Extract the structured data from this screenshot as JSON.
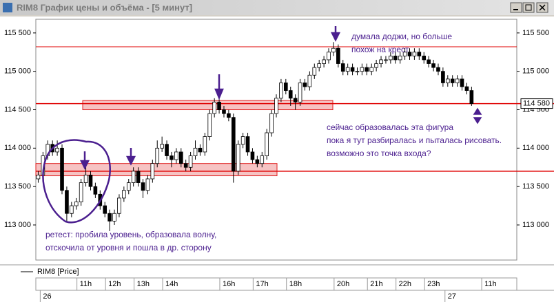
{
  "window_title": "RIM8 График цены и объёма - [5 минут]",
  "chart_data": {
    "type": "candlestick",
    "legend": "RIM8 [Price]",
    "ylim": [
      112570,
      115660
    ],
    "yticks": [
      {
        "value": 113000,
        "label": "113 000"
      },
      {
        "value": 113500,
        "label": "113 500"
      },
      {
        "value": 114000,
        "label": "114 000"
      },
      {
        "value": 114500,
        "label": "114 500"
      },
      {
        "value": 115000,
        "label": "115 000"
      },
      {
        "value": 115500,
        "label": "115 500"
      }
    ],
    "current_price": {
      "value": 114580,
      "label": "114 580"
    },
    "levels": [
      115320,
      114580,
      113700
    ],
    "zones": [
      [
        114500,
        114620
      ],
      [
        113640,
        113800
      ]
    ],
    "categories": [
      null,
      null,
      null,
      null,
      null,
      null,
      null,
      null,
      null,
      "11h",
      null,
      null,
      null,
      null,
      null,
      "12h",
      null,
      null,
      null,
      null,
      null,
      "13h",
      null,
      null,
      null,
      null,
      null,
      "14h",
      null,
      null,
      null,
      null,
      null,
      null,
      null,
      null,
      null,
      null,
      null,
      "16h",
      null,
      null,
      null,
      null,
      null,
      null,
      "17h",
      null,
      null,
      null,
      null,
      null,
      null,
      "18h",
      null,
      null,
      null,
      null,
      null,
      null,
      null,
      null,
      null,
      "20h",
      null,
      null,
      null,
      null,
      null,
      null,
      "21h",
      null,
      null,
      null,
      null,
      null,
      "22h",
      null,
      null,
      null,
      null,
      null,
      "23h",
      null,
      null,
      null,
      null,
      null,
      null,
      null,
      null,
      null,
      null,
      null,
      "11h",
      null,
      null,
      null,
      null,
      null,
      null
    ],
    "date_labels": [
      null,
      "26",
      null,
      null,
      null,
      null,
      null,
      null,
      null,
      null,
      null,
      null,
      null,
      null,
      null,
      null,
      null,
      null,
      null,
      null,
      null,
      null,
      null,
      null,
      null,
      null,
      null,
      null,
      null,
      null,
      null,
      null,
      null,
      null,
      null,
      null,
      null,
      null,
      null,
      null,
      null,
      null,
      null,
      null,
      null,
      null,
      null,
      null,
      null,
      null,
      null,
      null,
      null,
      null,
      null,
      null,
      null,
      null,
      null,
      null,
      null,
      null,
      null,
      null,
      null,
      null,
      null,
      null,
      null,
      null,
      null,
      null,
      null,
      null,
      null,
      null,
      null,
      null,
      null,
      null,
      null,
      null,
      null,
      null,
      null,
      null,
      "27",
      null,
      null,
      null,
      null,
      null,
      null,
      null,
      null,
      null,
      null,
      null,
      null,
      null
    ],
    "ohlc": [
      [
        113600,
        113700,
        113550,
        113650
      ],
      [
        113650,
        113950,
        113600,
        113900
      ],
      [
        113900,
        114100,
        113850,
        114050
      ],
      [
        114050,
        114100,
        113900,
        113950
      ],
      [
        113950,
        114100,
        113900,
        114000
      ],
      [
        114000,
        114050,
        113400,
        113450
      ],
      [
        113450,
        113500,
        113050,
        113150
      ],
      [
        113150,
        113300,
        113100,
        113250
      ],
      [
        113250,
        113350,
        113200,
        113300
      ],
      [
        113300,
        113600,
        113250,
        113550
      ],
      [
        113550,
        113750,
        113500,
        113650
      ],
      [
        113650,
        113700,
        113450,
        113500
      ],
      [
        113500,
        113550,
        113350,
        113400
      ],
      [
        113400,
        113450,
        113200,
        113250
      ],
      [
        113250,
        113300,
        113100,
        113150
      ],
      [
        113150,
        113200,
        112920,
        113050
      ],
      [
        113050,
        113200,
        113000,
        113150
      ],
      [
        113150,
        113400,
        113100,
        113350
      ],
      [
        113350,
        113500,
        113300,
        113450
      ],
      [
        113450,
        113600,
        113400,
        113550
      ],
      [
        113550,
        113750,
        113500,
        113700
      ],
      [
        113700,
        113750,
        113500,
        113550
      ],
      [
        113550,
        113600,
        113350,
        113450
      ],
      [
        113450,
        113650,
        113400,
        113600
      ],
      [
        113600,
        113850,
        113550,
        113800
      ],
      [
        113800,
        114100,
        113750,
        114000
      ],
      [
        114000,
        114150,
        113950,
        114050
      ],
      [
        114050,
        114100,
        113850,
        113900
      ],
      [
        113900,
        113950,
        113750,
        113850
      ],
      [
        113850,
        114000,
        113800,
        113950
      ],
      [
        113950,
        114000,
        113750,
        113800
      ],
      [
        113800,
        113850,
        113700,
        113750
      ],
      [
        113750,
        113950,
        113700,
        113900
      ],
      [
        113900,
        114100,
        113850,
        114000
      ],
      [
        114000,
        114050,
        113900,
        113950
      ],
      [
        113950,
        114200,
        113900,
        114150
      ],
      [
        114150,
        114500,
        114100,
        114450
      ],
      [
        114450,
        114650,
        114400,
        114600
      ],
      [
        114600,
        114650,
        114450,
        114500
      ],
      [
        114500,
        114550,
        114400,
        114450
      ],
      [
        114450,
        114500,
        114350,
        114400
      ],
      [
        114400,
        114450,
        113550,
        113700
      ],
      [
        113700,
        114100,
        113650,
        114050
      ],
      [
        114050,
        114200,
        114000,
        114150
      ],
      [
        114150,
        114200,
        113900,
        113950
      ],
      [
        113950,
        114000,
        113800,
        113850
      ],
      [
        113850,
        113900,
        113750,
        113800
      ],
      [
        113800,
        113950,
        113750,
        113900
      ],
      [
        113900,
        114250,
        113850,
        114200
      ],
      [
        114200,
        114500,
        114150,
        114450
      ],
      [
        114450,
        114700,
        114400,
        114650
      ],
      [
        114650,
        114900,
        114600,
        114850
      ],
      [
        114850,
        114900,
        114700,
        114750
      ],
      [
        114750,
        114800,
        114550,
        114650
      ],
      [
        114650,
        114700,
        114500,
        114600
      ],
      [
        114600,
        114900,
        114550,
        114850
      ],
      [
        114850,
        114900,
        114750,
        114800
      ],
      [
        114800,
        115000,
        114750,
        114950
      ],
      [
        114950,
        115100,
        114900,
        115050
      ],
      [
        115050,
        115150,
        115000,
        115100
      ],
      [
        115100,
        115200,
        115050,
        115150
      ],
      [
        115150,
        115300,
        115100,
        115250
      ],
      [
        115250,
        115380,
        115200,
        115300
      ],
      [
        115300,
        115350,
        115050,
        115100
      ],
      [
        115100,
        115150,
        114950,
        115000
      ],
      [
        115000,
        115100,
        114950,
        115050
      ],
      [
        115050,
        115100,
        114950,
        115000
      ],
      [
        115000,
        115050,
        114950,
        115000
      ],
      [
        115000,
        115100,
        114950,
        115050
      ],
      [
        115050,
        115100,
        114950,
        115000
      ],
      [
        115000,
        115100,
        114950,
        115050
      ],
      [
        115050,
        115150,
        115000,
        115100
      ],
      [
        115100,
        115200,
        115050,
        115150
      ],
      [
        115150,
        115200,
        115100,
        115150
      ],
      [
        115150,
        115250,
        115100,
        115200
      ],
      [
        115200,
        115250,
        115100,
        115150
      ],
      [
        115150,
        115250,
        115100,
        115200
      ],
      [
        115200,
        115300,
        115150,
        115250
      ],
      [
        115250,
        115300,
        115150,
        115200
      ],
      [
        115200,
        115300,
        115150,
        115250
      ],
      [
        115250,
        115300,
        115150,
        115200
      ],
      [
        115200,
        115250,
        115100,
        115150
      ],
      [
        115150,
        115200,
        115050,
        115100
      ],
      [
        115100,
        115150,
        115000,
        115050
      ],
      [
        115050,
        115100,
        114950,
        115000
      ],
      [
        115000,
        115050,
        114800,
        114850
      ],
      [
        114850,
        114950,
        114800,
        114900
      ],
      [
        114900,
        114950,
        114800,
        114850
      ],
      [
        114850,
        114950,
        114800,
        114900
      ],
      [
        114900,
        114950,
        114750,
        114800
      ],
      [
        114800,
        114850,
        114700,
        114750
      ],
      [
        114750,
        114800,
        114550,
        114580
      ],
      null,
      null,
      null,
      null,
      null,
      null,
      null,
      null
    ],
    "annotations": [
      [
        "думала доджи, но больше",
        "похож на крест"
      ],
      [
        "сейчас образовалась эта фигура",
        "пока я тут разбиралась и пыталась рисовать.",
        "возможно это точка входа?"
      ],
      [
        "ретест: пробила уровень, образовала волну,",
        "отскочила от уровня и пошла в др. сторону"
      ]
    ]
  }
}
